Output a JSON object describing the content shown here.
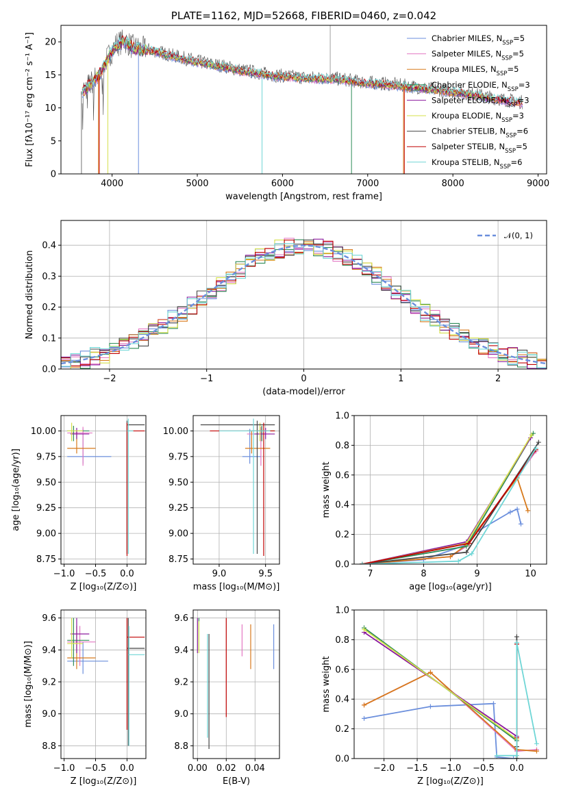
{
  "chart_data": [
    {
      "type": "line",
      "title": "PLATE=1162, MJD=52668, FIBERID=0460, z=0.042",
      "xlabel": "wavelength [Angstrom, rest frame]",
      "ylabel": "Flux [fλ10⁻¹⁷ erg cm⁻² s⁻¹ A⁻¹]",
      "xlim": [
        3400,
        9100
      ],
      "ylim": [
        0,
        22.5
      ],
      "xticks": [
        4000,
        5000,
        6000,
        7000,
        8000,
        9000
      ],
      "yticks": [
        0,
        5,
        10,
        15,
        20
      ],
      "legend_position": "top-right",
      "x": [
        3650,
        3750,
        3850,
        3950,
        4050,
        4150,
        4250,
        4350,
        4500,
        4700,
        4900,
        5100,
        5300,
        5500,
        5700,
        5900,
        6100,
        6300,
        6500,
        6700,
        6900,
        7100,
        7300,
        7500,
        7700,
        7900,
        8100,
        8300,
        8500,
        8700,
        8820
      ],
      "y": [
        12.5,
        13.5,
        15.0,
        17.5,
        19.5,
        20.0,
        19.0,
        18.8,
        18.5,
        17.8,
        17.2,
        16.6,
        16.2,
        15.6,
        15.2,
        14.8,
        14.6,
        14.4,
        14.4,
        14.2,
        13.8,
        13.6,
        13.4,
        13.1,
        12.8,
        12.5,
        12.2,
        11.8,
        11.3,
        10.9,
        10.7
      ],
      "series": [
        {
          "name": "Chabrier MILES, N",
          "sub": "SSP",
          "suffix": "=5",
          "color": "#6a8edc"
        },
        {
          "name": "Salpeter MILES, N",
          "sub": "SSP",
          "suffix": "=5",
          "color": "#e377c2"
        },
        {
          "name": "Kroupa MILES, N",
          "sub": "SSP",
          "suffix": "=5",
          "color": "#d7791a"
        },
        {
          "name": "Chabrier ELODIE, N",
          "sub": "SSP",
          "suffix": "=3",
          "color": "#2e8b57"
        },
        {
          "name": "Salpeter ELODIE, N",
          "sub": "SSP",
          "suffix": "=3",
          "color": "#8b1a9e"
        },
        {
          "name": "Kroupa ELODIE, N",
          "sub": "SSP",
          "suffix": "=3",
          "color": "#d4e04a"
        },
        {
          "name": "Chabrier STELIB, N",
          "sub": "SSP",
          "suffix": "=6",
          "color": "#444444"
        },
        {
          "name": "Salpeter STELIB, N",
          "sub": "SSP",
          "suffix": "=5",
          "color": "#c00000"
        },
        {
          "name": "Kroupa STELIB, N",
          "sub": "SSP",
          "suffix": "=6",
          "color": "#6fd6d6"
        }
      ]
    },
    {
      "type": "histogram",
      "xlabel": "(data-model)/error",
      "ylabel": "Normed distribution",
      "xlim": [
        -2.5,
        2.5
      ],
      "ylim": [
        0,
        0.48
      ],
      "xticks": [
        -2,
        -1,
        0,
        1,
        2
      ],
      "yticks": [
        0.0,
        0.1,
        0.2,
        0.3,
        0.4
      ],
      "legend": "𝒩(0, 1)",
      "legend_color": "#6a8edc",
      "bin_width": 0.1
    },
    {
      "type": "scatter",
      "xlabel": "Z [log₁₀(Z/Z⊙)]",
      "ylabel": "age  [log₁₀(age/yr)]",
      "xlim": [
        -1.05,
        0.3
      ],
      "ylim": [
        8.7,
        10.15
      ],
      "xticks": [
        -1.0,
        -0.5,
        0.0
      ],
      "yticks": [
        8.75,
        9.0,
        9.25,
        9.5,
        9.75,
        10.0
      ],
      "points": [
        {
          "x": -0.7,
          "y": 9.75,
          "xl": -0.95,
          "xh": -0.25,
          "yl": 9.68,
          "yh": 10.02,
          "color": "#6a8edc"
        },
        {
          "x": -0.7,
          "y": 9.98,
          "xl": -0.95,
          "xh": -0.55,
          "yl": 9.66,
          "yh": 10.04,
          "color": "#e377c2"
        },
        {
          "x": -0.8,
          "y": 9.83,
          "xl": -0.95,
          "xh": -0.5,
          "yl": 9.78,
          "yh": 10.0,
          "color": "#d7791a"
        },
        {
          "x": -0.85,
          "y": 10.0,
          "xl": -0.95,
          "xh": -0.6,
          "yl": 9.9,
          "yh": 10.05,
          "color": "#2e8b57"
        },
        {
          "x": -0.8,
          "y": 9.97,
          "xl": -0.9,
          "xh": -0.6,
          "yl": 9.92,
          "yh": 10.03,
          "color": "#8b1a9e"
        },
        {
          "x": -0.88,
          "y": 10.0,
          "xl": -0.95,
          "xh": -0.7,
          "yl": 9.9,
          "yh": 10.08,
          "color": "#d4e04a"
        },
        {
          "x": 0.0,
          "y": 10.06,
          "xl": 0.0,
          "xh": 0.28,
          "yl": 8.8,
          "yh": 10.1,
          "color": "#444444"
        },
        {
          "x": 0.0,
          "y": 10.0,
          "xl": 0.0,
          "xh": 0.28,
          "yl": 8.78,
          "yh": 10.08,
          "color": "#c00000"
        },
        {
          "x": 0.02,
          "y": 10.0,
          "xl": 0.0,
          "xh": 0.1,
          "yl": 8.8,
          "yh": 10.12,
          "color": "#6fd6d6"
        }
      ]
    },
    {
      "type": "scatter",
      "xlabel": "mass [log₁₀(M/M⊙)]",
      "ylabel": "",
      "xlim": [
        8.72,
        9.65
      ],
      "ylim": [
        8.7,
        10.15
      ],
      "xticks": [
        9.0,
        9.5
      ],
      "yticks": [
        8.75,
        9.0,
        9.25,
        9.5,
        9.75,
        10.0
      ],
      "points": [
        {
          "x": 9.33,
          "y": 9.75,
          "xl": 9.25,
          "xh": 9.45,
          "yl": 9.68,
          "yh": 10.02,
          "color": "#6a8edc"
        },
        {
          "x": 9.45,
          "y": 9.97,
          "xl": 9.3,
          "xh": 9.55,
          "yl": 9.66,
          "yh": 10.04,
          "color": "#e377c2"
        },
        {
          "x": 9.35,
          "y": 9.83,
          "xl": 9.28,
          "xh": 9.55,
          "yl": 9.78,
          "yh": 10.0,
          "color": "#d7791a"
        },
        {
          "x": 9.46,
          "y": 10.0,
          "xl": 9.3,
          "xh": 9.6,
          "yl": 9.9,
          "yh": 10.05,
          "color": "#2e8b57"
        },
        {
          "x": 9.5,
          "y": 9.97,
          "xl": 9.38,
          "xh": 9.6,
          "yl": 9.92,
          "yh": 10.03,
          "color": "#8b1a9e"
        },
        {
          "x": 9.44,
          "y": 10.0,
          "xl": 9.35,
          "xh": 9.6,
          "yl": 9.9,
          "yh": 10.08,
          "color": "#d4e04a"
        },
        {
          "x": 9.41,
          "y": 10.06,
          "xl": 8.8,
          "xh": 9.6,
          "yl": 8.8,
          "yh": 10.1,
          "color": "#444444"
        },
        {
          "x": 9.48,
          "y": 10.0,
          "xl": 8.9,
          "xh": 9.6,
          "yl": 8.78,
          "yh": 10.08,
          "color": "#c00000"
        },
        {
          "x": 9.37,
          "y": 10.0,
          "xl": 9.0,
          "xh": 9.55,
          "yl": 8.8,
          "yh": 10.12,
          "color": "#6fd6d6"
        }
      ]
    },
    {
      "type": "line",
      "xlabel": "age  [log₁₀(age/yr)]",
      "ylabel": "mass weight",
      "xlim": [
        6.7,
        10.3
      ],
      "ylim": [
        0,
        1.0
      ],
      "xticks": [
        7,
        8,
        9,
        10
      ],
      "yticks": [
        0.0,
        0.2,
        0.4,
        0.6,
        0.8,
        1.0
      ],
      "series": [
        {
          "color": "#6a8edc",
          "x": [
            6.85,
            8.0,
            8.8,
            9.0,
            9.62,
            9.75,
            9.82
          ],
          "y": [
            0.0,
            0.03,
            0.13,
            0.22,
            0.35,
            0.37,
            0.27
          ]
        },
        {
          "color": "#e377c2",
          "x": [
            6.85,
            8.5,
            8.8,
            10.1
          ],
          "y": [
            0.0,
            0.05,
            0.12,
            0.76
          ]
        },
        {
          "color": "#d7791a",
          "x": [
            6.85,
            8.5,
            8.8,
            9.75,
            9.95
          ],
          "y": [
            0.0,
            0.05,
            0.13,
            0.58,
            0.36
          ]
        },
        {
          "color": "#2e8b57",
          "x": [
            6.85,
            8.8,
            10.05
          ],
          "y": [
            0.0,
            0.12,
            0.88
          ]
        },
        {
          "color": "#8b1a9e",
          "x": [
            6.85,
            8.8,
            10.0
          ],
          "y": [
            0.0,
            0.15,
            0.85
          ]
        },
        {
          "color": "#d4e04a",
          "x": [
            6.85,
            8.8,
            10.02
          ],
          "y": [
            0.0,
            0.14,
            0.87
          ]
        },
        {
          "color": "#444444",
          "x": [
            6.85,
            8.8,
            10.15
          ],
          "y": [
            0.0,
            0.08,
            0.82
          ]
        },
        {
          "color": "#c00000",
          "x": [
            6.85,
            8.85,
            10.1
          ],
          "y": [
            0.0,
            0.14,
            0.77
          ]
        },
        {
          "color": "#6fd6d6",
          "x": [
            6.85,
            8.65,
            8.9,
            10.1
          ],
          "y": [
            0.0,
            0.02,
            0.07,
            0.78
          ]
        }
      ]
    },
    {
      "type": "errorbar",
      "xlabel": "Z [log₁₀(Z/Z⊙)]",
      "ylabel": "mass [log₁₀(M/M⊙)]",
      "xlim": [
        -1.05,
        0.3
      ],
      "ylim": [
        8.72,
        9.65
      ],
      "xticks": [
        -1.0,
        -0.5,
        0.0
      ],
      "yticks": [
        8.8,
        9.0,
        9.2,
        9.4,
        9.6
      ],
      "points": [
        {
          "x": -0.7,
          "y": 9.33,
          "xl": -0.95,
          "xh": -0.3,
          "yl": 9.25,
          "yh": 9.45,
          "color": "#6a8edc"
        },
        {
          "x": -0.75,
          "y": 9.45,
          "xl": -0.95,
          "xh": -0.5,
          "yl": 9.3,
          "yh": 9.55,
          "color": "#e377c2"
        },
        {
          "x": -0.8,
          "y": 9.35,
          "xl": -0.95,
          "xh": -0.5,
          "yl": 9.28,
          "yh": 9.55,
          "color": "#d7791a"
        },
        {
          "x": -0.85,
          "y": 9.46,
          "xl": -0.95,
          "xh": -0.6,
          "yl": 9.3,
          "yh": 9.6,
          "color": "#2e8b57"
        },
        {
          "x": -0.8,
          "y": 9.5,
          "xl": -0.9,
          "xh": -0.6,
          "yl": 9.38,
          "yh": 9.6,
          "color": "#8b1a9e"
        },
        {
          "x": -0.88,
          "y": 9.44,
          "xl": -0.95,
          "xh": -0.7,
          "yl": 9.35,
          "yh": 9.6,
          "color": "#d4e04a"
        },
        {
          "x": 0.02,
          "y": 9.41,
          "xl": 0.0,
          "xh": 0.28,
          "yl": 8.8,
          "yh": 9.6,
          "color": "#444444"
        },
        {
          "x": 0.0,
          "y": 9.48,
          "xl": 0.0,
          "xh": 0.28,
          "yl": 8.9,
          "yh": 9.6,
          "color": "#c00000"
        },
        {
          "x": 0.03,
          "y": 9.37,
          "xl": 0.02,
          "xh": 0.28,
          "yl": 8.8,
          "yh": 9.55,
          "color": "#6fd6d6"
        }
      ]
    },
    {
      "type": "errorbar",
      "xlabel": "E(B-V)",
      "ylabel": "",
      "xlim": [
        -0.003,
        0.057
      ],
      "ylim": [
        8.72,
        9.65
      ],
      "xticks": [
        0.0,
        0.02,
        0.04
      ],
      "yticks": [
        8.8,
        9.0,
        9.2,
        9.4,
        9.6
      ],
      "points": [
        {
          "x": 0.053,
          "y": 9.4,
          "yl": 9.28,
          "yh": 9.56,
          "color": "#6a8edc"
        },
        {
          "x": 0.031,
          "y": 9.44,
          "yl": 9.36,
          "yh": 9.56,
          "color": "#e377c2"
        },
        {
          "x": 0.037,
          "y": 9.4,
          "yl": 9.28,
          "yh": 9.56,
          "color": "#d7791a"
        },
        {
          "x": 0.001,
          "y": 9.5,
          "yl": 9.4,
          "yh": 9.6,
          "color": "#2e8b57"
        },
        {
          "x": 0.0,
          "y": 9.5,
          "yl": 9.38,
          "yh": 9.6,
          "color": "#8b1a9e"
        },
        {
          "x": 0.001,
          "y": 9.5,
          "yl": 9.38,
          "yh": 9.58,
          "color": "#d4e04a"
        },
        {
          "x": 0.008,
          "y": 9.2,
          "yl": 8.78,
          "yh": 9.5,
          "color": "#444444"
        },
        {
          "x": 0.02,
          "y": 9.4,
          "yl": 8.98,
          "yh": 9.6,
          "color": "#c00000"
        },
        {
          "x": 0.007,
          "y": 9.3,
          "yl": 8.85,
          "yh": 9.5,
          "color": "#6fd6d6"
        }
      ]
    },
    {
      "type": "line",
      "xlabel": "Z [log₁₀(Z/Z⊙)]",
      "ylabel": "mass weight",
      "xlim": [
        -2.45,
        0.45
      ],
      "ylim": [
        0,
        1.0
      ],
      "xticks": [
        -2.0,
        -1.5,
        -1.0,
        -0.5,
        0.0
      ],
      "yticks": [
        0.0,
        0.2,
        0.4,
        0.6,
        0.8,
        1.0
      ],
      "series": [
        {
          "color": "#6a8edc",
          "x": [
            -2.3,
            -1.3,
            -0.35,
            -0.3,
            -0.05,
            0.0
          ],
          "y": [
            0.27,
            0.35,
            0.37,
            0.01,
            0.0,
            0.0
          ]
        },
        {
          "color": "#e377c2",
          "x": [
            -2.3,
            -1.3,
            0.0,
            0.3
          ],
          "y": [
            0.36,
            0.58,
            0.05,
            0.06
          ]
        },
        {
          "color": "#d7791a",
          "x": [
            -2.3,
            -1.3,
            0.0,
            0.3
          ],
          "y": [
            0.36,
            0.58,
            0.06,
            0.05
          ]
        },
        {
          "color": "#2e8b57",
          "x": [
            -2.3,
            0.0,
            0.0
          ],
          "y": [
            0.88,
            0.12,
            0.0
          ]
        },
        {
          "color": "#8b1a9e",
          "x": [
            -2.3,
            0.0,
            0.0
          ],
          "y": [
            0.85,
            0.15,
            0.0
          ]
        },
        {
          "color": "#d4e04a",
          "x": [
            -2.3,
            0.0,
            0.0
          ],
          "y": [
            0.87,
            0.13,
            0.0
          ]
        },
        {
          "color": "#444444",
          "x": [
            0.0,
            0.0,
            0.0
          ],
          "y": [
            0.82,
            0.08,
            0.0
          ]
        },
        {
          "color": "#c00000",
          "x": [
            0.0,
            0.0
          ],
          "y": [
            0.77,
            0.14
          ]
        },
        {
          "color": "#6fd6d6",
          "x": [
            -0.3,
            0.0,
            0.0,
            0.3
          ],
          "y": [
            0.02,
            0.02,
            0.78,
            0.1
          ]
        }
      ]
    }
  ]
}
